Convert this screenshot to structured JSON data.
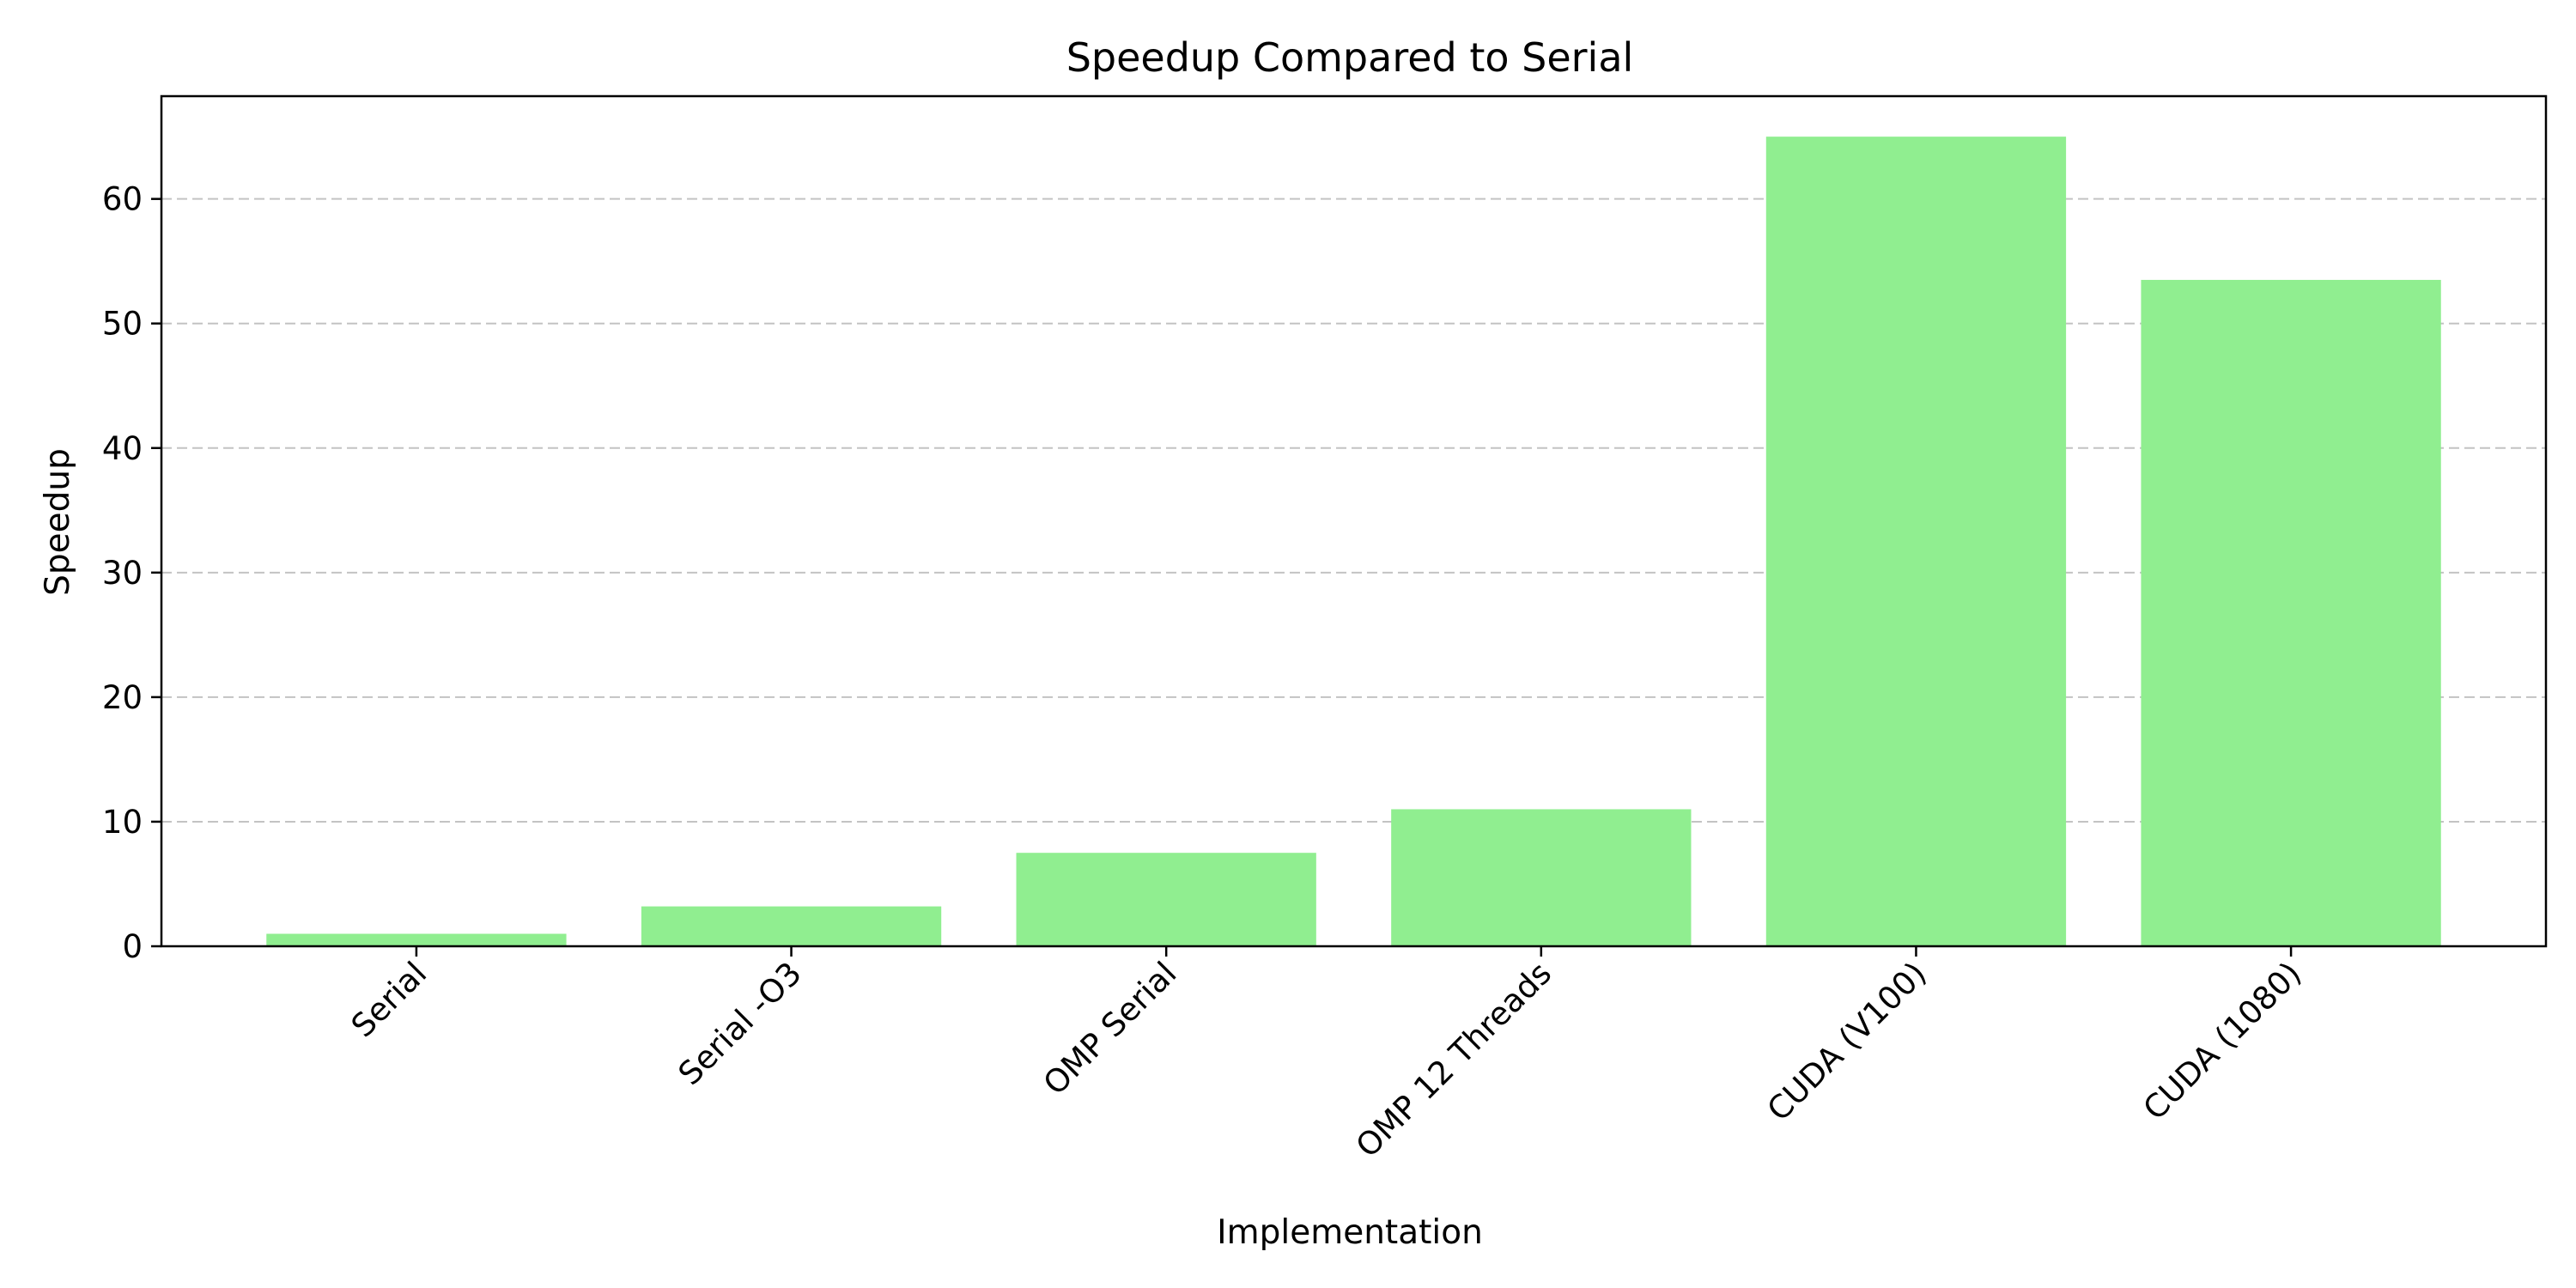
{
  "chart_data": {
    "type": "bar",
    "title": "Speedup Compared to Serial",
    "xlabel": "Implementation",
    "ylabel": "Speedup",
    "categories": [
      "Serial",
      "Serial -O3",
      "OMP Serial",
      "OMP 12 Threads",
      "CUDA (V100)",
      "CUDA (1080)"
    ],
    "values": [
      1.0,
      3.2,
      7.5,
      11.0,
      65.0,
      53.5
    ],
    "ylim": [
      0,
      68.25
    ],
    "yticks": [
      0,
      10,
      20,
      30,
      40,
      50,
      60
    ],
    "grid": "y-dashed",
    "bar_color": "#90ee90"
  }
}
